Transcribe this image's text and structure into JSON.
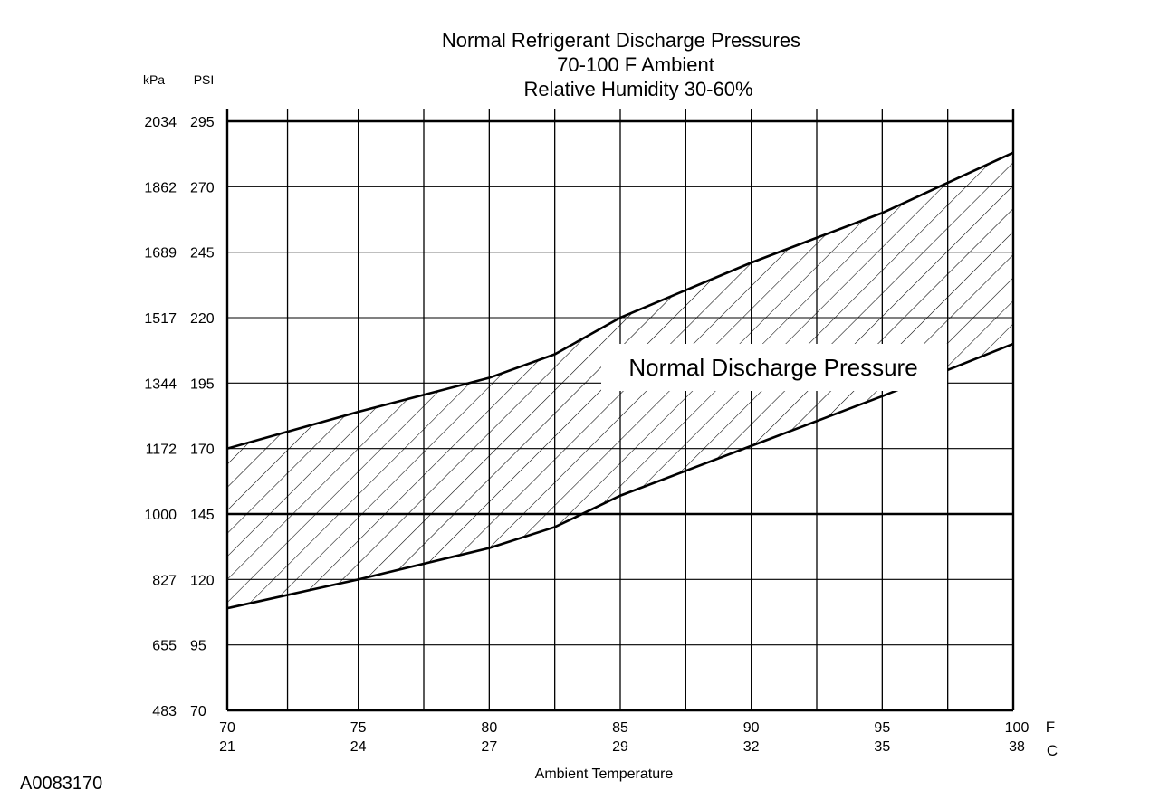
{
  "chart_data": {
    "type": "area",
    "title": [
      "Normal  Refrigerant  Discharge  Pressures",
      "70-100 F Ambient",
      "Relative Humidity 30-60%"
    ],
    "xlabel": "Ambient Temperature",
    "x_unit_f": "F",
    "x_unit_c": "C",
    "y_unit_kpa": "kPa",
    "y_unit_psi": "PSI",
    "xlim": [
      70,
      100
    ],
    "ylim": [
      70,
      295
    ],
    "x_ticks": [
      {
        "f": "70",
        "c": "21",
        "value": 70
      },
      {
        "f": "75",
        "c": "24",
        "value": 75
      },
      {
        "f": "80",
        "c": "27",
        "value": 80
      },
      {
        "f": "85",
        "c": "29",
        "value": 85
      },
      {
        "f": "90",
        "c": "32",
        "value": 90
      },
      {
        "f": "95",
        "c": "35",
        "value": 95
      },
      {
        "f": "100",
        "c": "38",
        "value": 100
      }
    ],
    "y_ticks": [
      {
        "kpa": "2034",
        "psi": "295",
        "value": 295
      },
      {
        "kpa": "1862",
        "psi": "270",
        "value": 270
      },
      {
        "kpa": "1689",
        "psi": "245",
        "value": 245
      },
      {
        "kpa": "1517",
        "psi": "220",
        "value": 220
      },
      {
        "kpa": "1344",
        "psi": "195",
        "value": 195
      },
      {
        "kpa": "1172",
        "psi": "170",
        "value": 170
      },
      {
        "kpa": "1000",
        "psi": "145",
        "value": 145
      },
      {
        "kpa": "827",
        "psi": "120",
        "value": 120
      },
      {
        "kpa": "655",
        "psi": "95",
        "value": 95
      },
      {
        "kpa": "483",
        "psi": "70",
        "value": 70
      }
    ],
    "vertical_gridlines": [
      70,
      72.3,
      75,
      77.5,
      80,
      82.5,
      85,
      87.5,
      90,
      92.5,
      95,
      97.5,
      100
    ],
    "upper_boundary": {
      "x": [
        70,
        75,
        80,
        82.5,
        85,
        90,
        95,
        100
      ],
      "y": [
        170,
        184,
        197,
        206,
        220,
        241,
        260,
        283
      ]
    },
    "lower_boundary": {
      "x": [
        70,
        75,
        80,
        82.5,
        85,
        90,
        95,
        100
      ],
      "y": [
        109,
        120,
        132,
        140,
        152,
        171,
        190,
        210
      ]
    },
    "annotation": "Normal Discharge Pressure",
    "figure_id": "A0083170",
    "grid": true
  }
}
